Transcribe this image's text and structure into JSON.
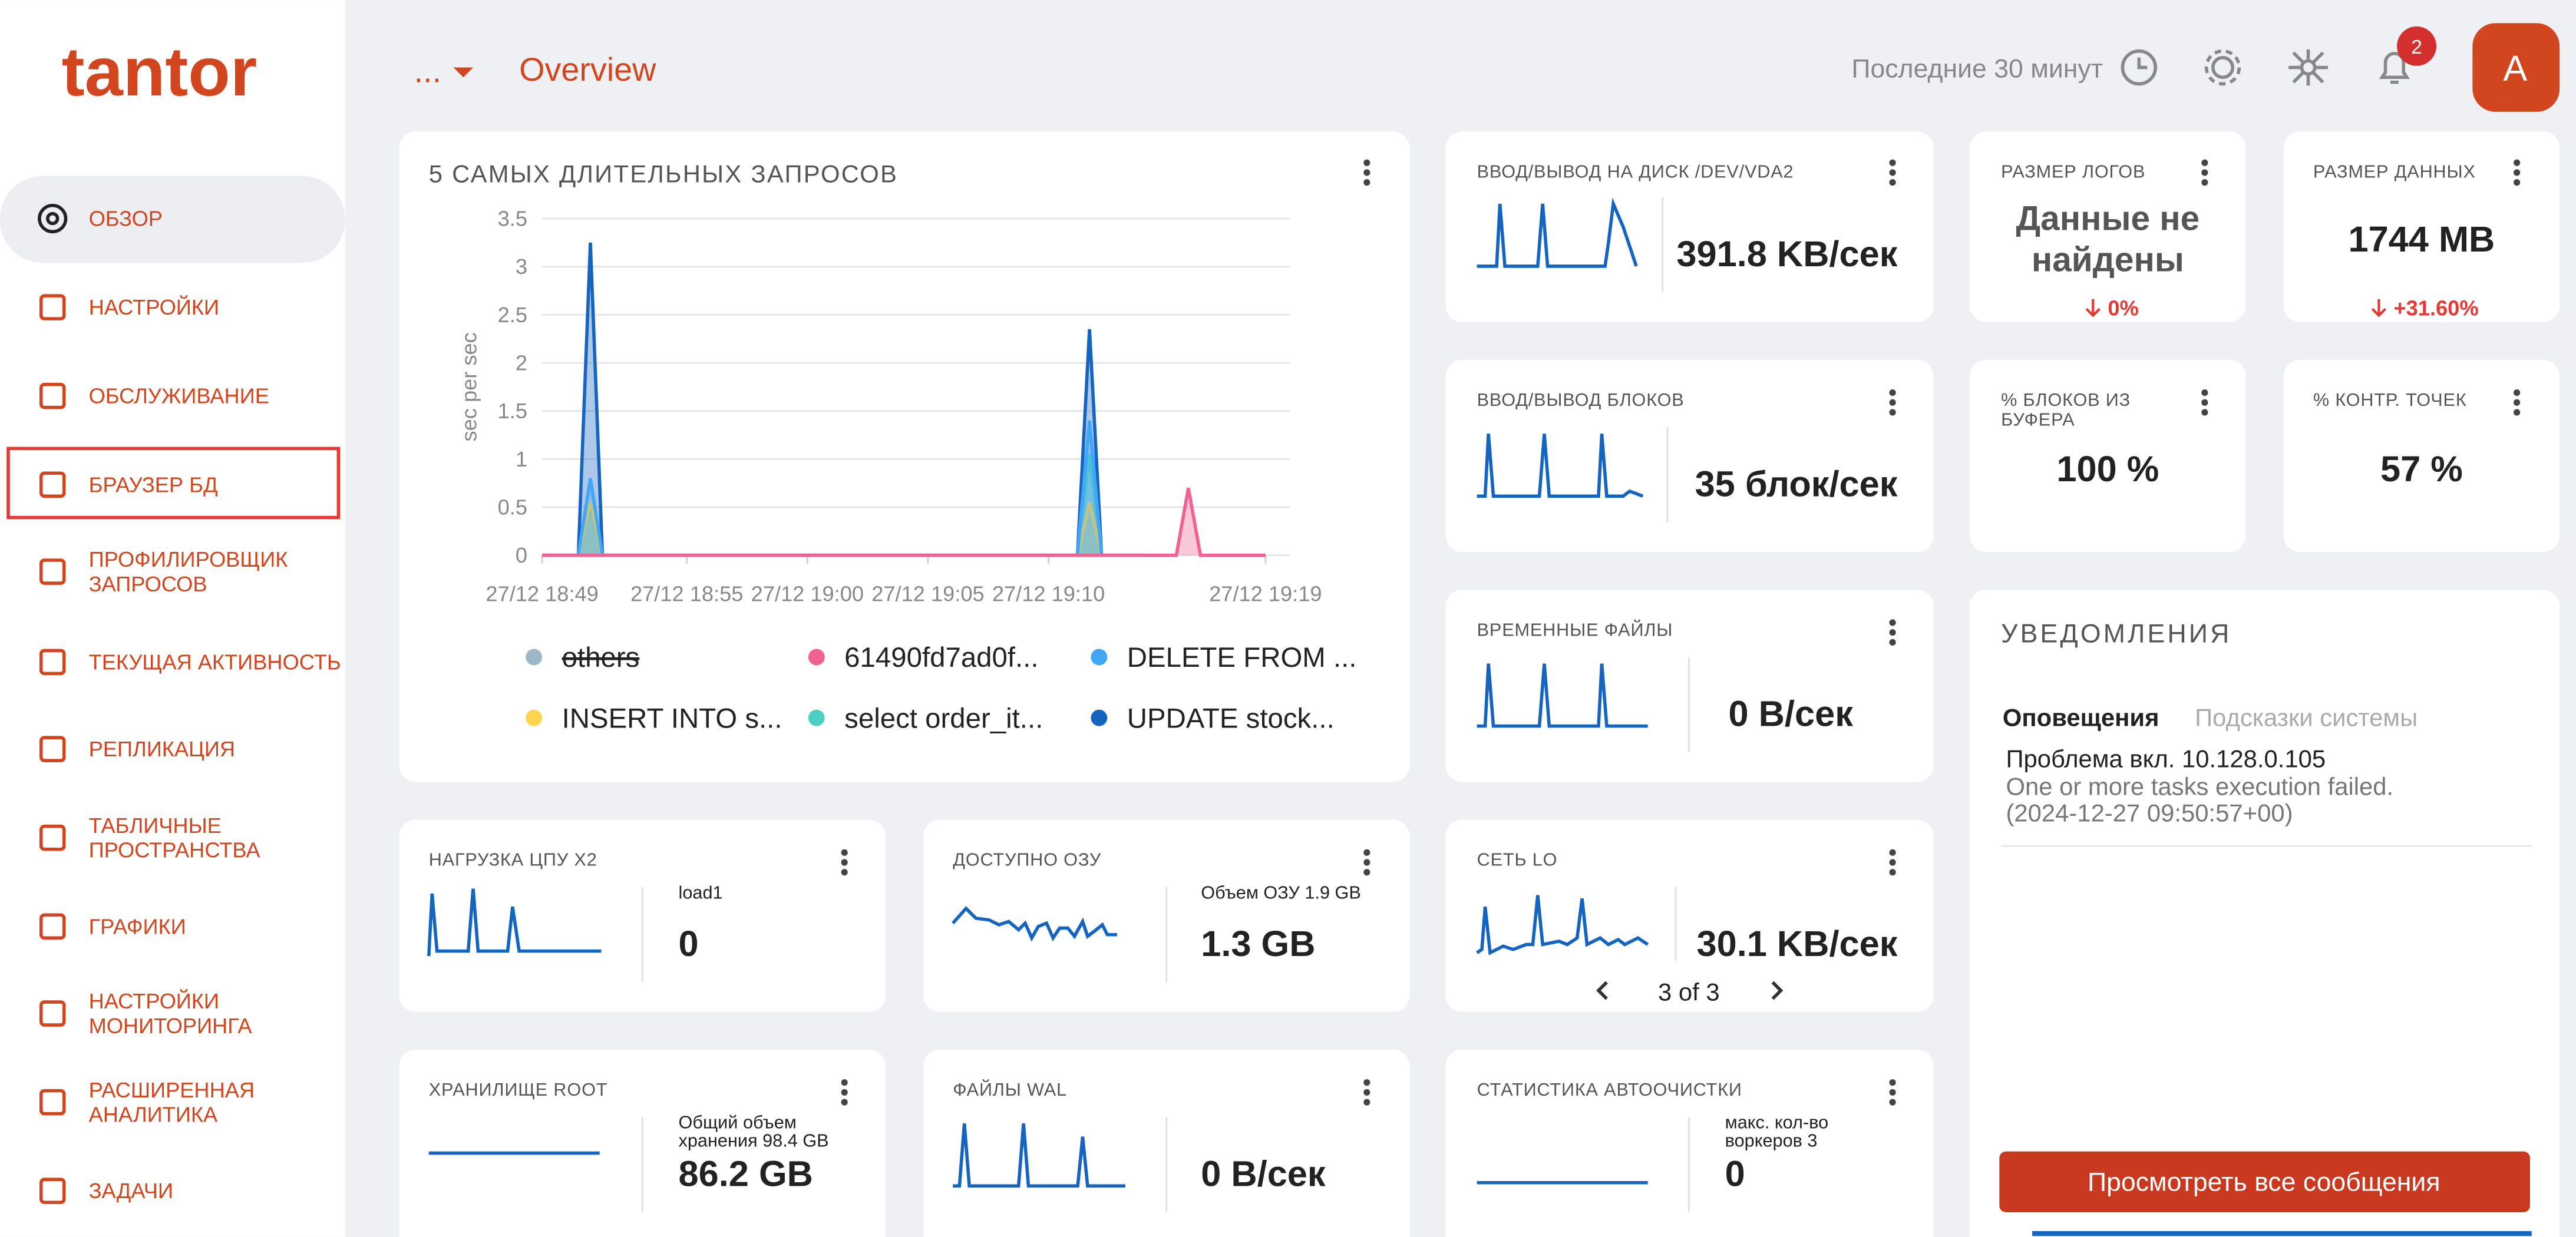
{
  "header": {
    "logo": "tantor",
    "breadcrumb": "...",
    "page_title": "Overview",
    "time_range": "Последние 30 минут",
    "notification_count": "2",
    "avatar": "A"
  },
  "sidebar": {
    "items": [
      {
        "lines": [
          "ОБЗОР"
        ]
      },
      {
        "lines": [
          "НАСТРОЙКИ"
        ]
      },
      {
        "lines": [
          "ОБСЛУЖИВАНИЕ"
        ]
      },
      {
        "lines": [
          "БРАУЗЕР БД"
        ]
      },
      {
        "lines": [
          "ПРОФИЛИРОВЩИК",
          "ЗАПРОСОВ"
        ]
      },
      {
        "lines": [
          "ТЕКУЩАЯ АКТИВНОСТЬ"
        ]
      },
      {
        "lines": [
          "РЕПЛИКАЦИЯ"
        ]
      },
      {
        "lines": [
          "ТАБЛИЧНЫЕ",
          "ПРОСТРАНСТВА"
        ]
      },
      {
        "lines": [
          "ГРАФИКИ"
        ]
      },
      {
        "lines": [
          "НАСТРОЙКИ",
          "МОНИТОРИНГА"
        ]
      },
      {
        "lines": [
          "РАСШИРЕННАЯ",
          "АНАЛИТИКА"
        ]
      },
      {
        "lines": [
          "ЗАДАЧИ"
        ]
      }
    ]
  },
  "chart_data": {
    "type": "line",
    "title": "5 САМЫХ ДЛИТЕЛЬНЫХ ЗАПРОСОВ",
    "y_label": "sec per sec",
    "x": [
      49,
      50.5,
      51,
      51.5,
      53,
      70,
      71.2,
      71.7,
      72.2,
      74,
      75.3,
      75.8,
      76.3,
      79
    ],
    "xlim": [
      49,
      80
    ],
    "xticks": [
      {
        "value": 49,
        "label": "27/12 18:49"
      },
      {
        "value": 55,
        "label": "27/12 18:55"
      },
      {
        "value": 60,
        "label": "27/12 19:00"
      },
      {
        "value": 65,
        "label": "27/12 19:05"
      },
      {
        "value": 70,
        "label": "27/12 19:10"
      },
      {
        "value": 79,
        "label": "27/12 19:19"
      }
    ],
    "ylim": [
      0,
      3.5
    ],
    "yticks": [
      0,
      0.5,
      1,
      1.5,
      2,
      2.5,
      3,
      3.5
    ],
    "grid": true,
    "series": [
      {
        "name": "others",
        "color": "#9db6c8",
        "hidden": true
      },
      {
        "name": "61490fd7ad0f...",
        "color": "#f06292",
        "values": [
          0,
          0,
          0,
          0,
          0,
          0,
          0,
          0,
          0,
          0,
          0,
          0.7,
          0,
          0
        ]
      },
      {
        "name": "DELETE FROM ...",
        "color": "#42a5f5",
        "values": [
          0,
          0,
          0.8,
          0,
          0,
          0,
          0,
          1.4,
          0,
          0,
          null,
          null,
          null,
          null
        ]
      },
      {
        "name": "INSERT INTO s...",
        "color": "#ffd54f",
        "values": [
          0,
          0,
          0.55,
          0,
          0,
          0,
          0,
          0.55,
          0,
          0,
          null,
          null,
          null,
          null
        ]
      },
      {
        "name": "select order_it...",
        "color": "#4dd0c4",
        "values": [
          0,
          0,
          0.5,
          0,
          0,
          0,
          0,
          1.05,
          0,
          0,
          null,
          null,
          null,
          null
        ]
      },
      {
        "name": "UPDATE stock...",
        "color": "#1565c0",
        "values": [
          0,
          0,
          3.25,
          0,
          0,
          0,
          0,
          2.35,
          0,
          0,
          null,
          null,
          null,
          null
        ]
      }
    ]
  },
  "widgets": {
    "disk_io": {
      "title": "ВВОД/ВЫВОД НА ДИСК /DEV/VDA2",
      "value": "391.8 KB/сек"
    },
    "log_size": {
      "title": "РАЗМЕР ЛОГОВ",
      "value": [
        "Данные не",
        "найдены"
      ],
      "change": "0%"
    },
    "data_size": {
      "title": "РАЗМЕР ДАННЫХ",
      "value": "1744 MB",
      "change": "+31.60%"
    },
    "block_io": {
      "title": "ВВОД/ВЫВОД БЛОКОВ",
      "value": "35 блок/сек"
    },
    "buffer_hits": {
      "title": [
        "% БЛОКОВ ИЗ",
        "БУФЕРА"
      ],
      "value": "100 %"
    },
    "checkpoints": {
      "title": "% КОНТР. ТОЧЕК",
      "value": "57 %"
    },
    "temp_files": {
      "title": "ВРЕМЕННЫЕ ФАЙЛЫ",
      "value": "0 B/сек"
    },
    "cpu": {
      "title": "НАГРУЗКА ЦПУ X2",
      "label": "load1",
      "value": "0"
    },
    "ram": {
      "title": "ДОСТУПНО ОЗУ",
      "label": "Объем ОЗУ 1.9 GB",
      "value": "1.3 GB"
    },
    "network": {
      "title": "СЕТЬ LO",
      "value": "30.1 KB/сек",
      "pager": "3 of 3"
    },
    "storage": {
      "title": "ХРАНИЛИЩЕ ROOT",
      "label": [
        "Общий объем",
        "хранения 98.4 GB"
      ],
      "value": "86.2 GB"
    },
    "wal": {
      "title": "ФАЙЛЫ WAL",
      "value": "0 B/сек"
    },
    "autovacuum": {
      "title": "СТАТИСТИКА АВТООЧИСТКИ",
      "label": [
        "макс. кол-во",
        "воркеров 3"
      ],
      "value": "0"
    }
  },
  "notifications": {
    "title": "УВЕДОМЛЕНИЯ",
    "tabs": [
      "Оповещения",
      "Подсказки системы"
    ],
    "items": [
      {
        "title": "Проблема вкл. 10.128.0.105",
        "text": [
          "One or more tasks execution failed.",
          "(2024-12-27 09:50:57+00)"
        ]
      }
    ],
    "button": "Просмотреть все сообщения"
  }
}
